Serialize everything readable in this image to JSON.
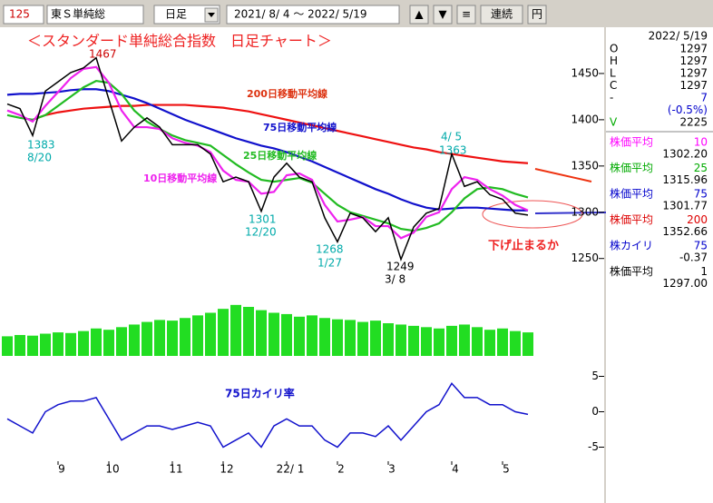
{
  "toolbar": {
    "code": "125",
    "name": "東Ｓ単純総",
    "period": "日足",
    "range": "2021/ 8/ 4 ～ 2022/ 5/19",
    "buttons": [
      "▲",
      "▼",
      "≡",
      "連続",
      "円"
    ]
  },
  "info_panel": {
    "date": "2022/ 5/19",
    "ohlc": [
      {
        "label": "O",
        "value": "1297"
      },
      {
        "label": "H",
        "value": "1297"
      },
      {
        "label": "L",
        "value": "1297"
      },
      {
        "label": "C",
        "value": "1297"
      },
      {
        "label": "-",
        "value": "7"
      },
      {
        "label": "",
        "value": "(-0.5%)"
      },
      {
        "label": "V",
        "value": "2225"
      }
    ],
    "indicators": [
      {
        "label": "株価平均",
        "period": "10",
        "value": "1302.20",
        "color": "#ff00ff"
      },
      {
        "label": "株価平均",
        "period": "25",
        "value": "1315.96",
        "color": "#00aa00"
      },
      {
        "label": "株価平均",
        "period": "75",
        "value": "1301.77",
        "color": "#0000cc"
      },
      {
        "label": "株価平均",
        "period": "200",
        "value": "1352.66",
        "color": "#dd0000"
      },
      {
        "label": "株カイリ",
        "period": "75",
        "value": "-0.37",
        "color": "#0000cc"
      },
      {
        "label": "株価平均",
        "period": "1",
        "value": "1297.00",
        "color": "#000000"
      }
    ]
  },
  "chart_data": [
    {
      "type": "line",
      "title": "＜スタンダード単純総合指数　日足チャート＞",
      "categories": [
        null,
        null,
        null,
        null,
        "9",
        null,
        null,
        null,
        "10",
        null,
        null,
        null,
        null,
        "11",
        null,
        null,
        null,
        "12",
        null,
        null,
        null,
        null,
        "22/ 1",
        null,
        null,
        null,
        "2",
        null,
        null,
        null,
        "3",
        null,
        null,
        null,
        null,
        "4",
        null,
        null,
        null,
        "5",
        null,
        null
      ],
      "ylim": [
        1235,
        1500
      ],
      "yticks": [
        1250,
        1300,
        1350,
        1400,
        1450
      ],
      "series": [
        {
          "name": "200日移動平均線",
          "color": "#ee1111",
          "values": [
            null,
            null,
            1400,
            1405,
            1408,
            1410,
            1412,
            1413,
            1414,
            1415,
            1415,
            1416,
            1416,
            1416,
            1416,
            1415,
            1414,
            1413,
            1411,
            1409,
            1406,
            1403,
            1400,
            1397,
            1394,
            1391,
            1388,
            1385,
            1382,
            1379,
            1376,
            1373,
            1370,
            1368,
            1365,
            1363,
            1361,
            1359,
            1357,
            1355,
            1354,
            1353
          ]
        },
        {
          "name": "75日移動平均線",
          "color": "#1111cc",
          "values": [
            1427,
            1428,
            1428,
            1429,
            1430,
            1432,
            1433,
            1433,
            1431,
            1427,
            1423,
            1418,
            1412,
            1406,
            1400,
            1395,
            1390,
            1385,
            1380,
            1376,
            1372,
            1369,
            1365,
            1360,
            1355,
            1349,
            1343,
            1337,
            1331,
            1325,
            1320,
            1314,
            1309,
            1305,
            1303,
            1304,
            1305,
            1305,
            1304,
            1303,
            1302,
            1302
          ]
        },
        {
          "name": "25日移動平均線",
          "color": "#22bb22",
          "values": [
            1405,
            1402,
            1400,
            1405,
            1415,
            1425,
            1435,
            1442,
            1440,
            1428,
            1410,
            1398,
            1390,
            1383,
            1378,
            1375,
            1372,
            1362,
            1352,
            1343,
            1335,
            1333,
            1335,
            1337,
            1332,
            1320,
            1308,
            1300,
            1296,
            1292,
            1288,
            1282,
            1280,
            1283,
            1288,
            1300,
            1315,
            1325,
            1327,
            1325,
            1320,
            1316
          ]
        },
        {
          "name": "10日移動平均線",
          "color": "#ee22ee",
          "values": [
            1410,
            1405,
            1398,
            1415,
            1430,
            1445,
            1455,
            1457,
            1440,
            1410,
            1392,
            1392,
            1390,
            1380,
            1375,
            1372,
            1365,
            1345,
            1335,
            1333,
            1320,
            1322,
            1340,
            1342,
            1335,
            1308,
            1290,
            1292,
            1295,
            1285,
            1285,
            1272,
            1278,
            1295,
            1300,
            1325,
            1338,
            1335,
            1325,
            1318,
            1308,
            1302
          ]
        },
        {
          "color": "#000000",
          "values": [
            1417,
            1412,
            1383,
            1431,
            1441,
            1451,
            1456,
            1467,
            1422,
            1377,
            1392,
            1402,
            1392,
            1373,
            1373,
            1373,
            1363,
            1333,
            1338,
            1333,
            1301,
            1338,
            1353,
            1338,
            1333,
            1294,
            1268,
            1299,
            1294,
            1279,
            1294,
            1249,
            1284,
            1299,
            1304,
            1363,
            1328,
            1333,
            1319,
            1314,
            1299,
            1297
          ]
        }
      ],
      "annotations": [
        "1467",
        "1383",
        "8/20",
        "1301",
        "12/20",
        "1268",
        "1/27",
        "1249",
        "3/ 8",
        "4/ 5",
        "1363",
        "下げ止まるか"
      ]
    },
    {
      "type": "bar",
      "color": "#22dd22",
      "ylim": [
        0,
        100
      ],
      "values": [
        30,
        32,
        31,
        34,
        36,
        35,
        38,
        42,
        40,
        44,
        48,
        52,
        55,
        54,
        58,
        62,
        66,
        72,
        78,
        75,
        70,
        66,
        64,
        60,
        62,
        58,
        56,
        55,
        52,
        54,
        50,
        48,
        46,
        44,
        42,
        46,
        48,
        44,
        40,
        42,
        38,
        36
      ]
    },
    {
      "type": "line",
      "title": "75日カイリ率",
      "ylim": [
        -7.5,
        7.5
      ],
      "yticks": [
        5,
        0,
        -5
      ],
      "series": [
        {
          "color": "#1111cc",
          "values": [
            -1,
            -2,
            -3,
            0,
            1,
            1.5,
            1.5,
            2,
            -1,
            -4,
            -3,
            -2,
            -2,
            -2.5,
            -2,
            -1.5,
            -2,
            -5,
            -4,
            -3,
            -5,
            -2,
            -1,
            -2,
            -2,
            -4,
            -5,
            -3,
            -3,
            -3.5,
            -2,
            -4,
            -2,
            0,
            1,
            4,
            2,
            2,
            1,
            1,
            0,
            -0.37
          ]
        }
      ]
    }
  ]
}
